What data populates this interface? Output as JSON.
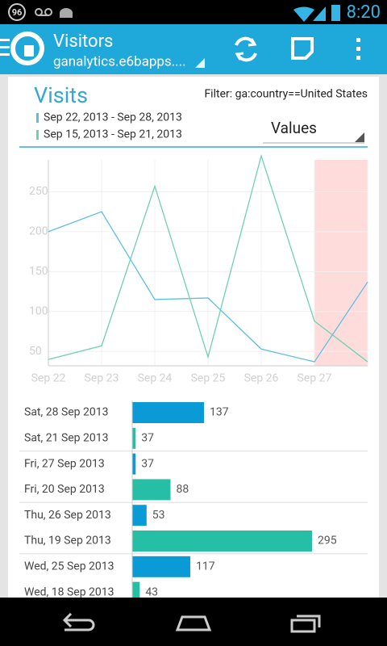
{
  "status_bar": {
    "battery": "96",
    "time": "8:20"
  },
  "app_bar": {
    "title": "Visitors",
    "subtitle": "ganalytics.e6bapps...."
  },
  "card": {
    "title": "Visits",
    "filter": "Filter: ga:country==United States",
    "dropdown": "Values"
  },
  "chart_data": {
    "type": "line",
    "categories": [
      "Sep 22",
      "Sep 23",
      "Sep 24",
      "Sep 25",
      "Sep 26",
      "Sep 27",
      null
    ],
    "series": [
      {
        "name": "Sep 22, 2013 - Sep 28, 2013",
        "color": "#5bc0e0",
        "values": [
          200,
          225,
          115,
          117,
          53,
          37,
          137
        ]
      },
      {
        "name": "Sep 15, 2013 - Sep 21, 2013",
        "color": "#6fd0b4",
        "values": [
          40,
          57,
          257,
          43,
          295,
          88,
          37
        ]
      }
    ],
    "ylim": [
      32,
      295
    ],
    "yticks": [
      50,
      100,
      150,
      200,
      250
    ],
    "grid": true
  },
  "list": {
    "xlim": [
      32,
      295
    ],
    "rows": [
      {
        "label": "Sat, 28 Sep 2013",
        "value": 137,
        "color": "#0a9ad6"
      },
      {
        "label": "Sat, 21 Sep 2013",
        "value": 37,
        "color": "#26bfa5"
      },
      {
        "label": "Fri, 27 Sep 2013",
        "value": 37,
        "color": "#0a9ad6"
      },
      {
        "label": "Fri, 20 Sep 2013",
        "value": 88,
        "color": "#26bfa5"
      },
      {
        "label": "Thu, 26 Sep 2013",
        "value": 53,
        "color": "#0a9ad6"
      },
      {
        "label": "Thu, 19 Sep 2013",
        "value": 295,
        "color": "#26bfa5"
      },
      {
        "label": "Wed, 25 Sep 2013",
        "value": 117,
        "color": "#0a9ad6"
      },
      {
        "label": "Wed, 18 Sep 2013",
        "value": 43,
        "color": "#26bfa5"
      }
    ]
  }
}
